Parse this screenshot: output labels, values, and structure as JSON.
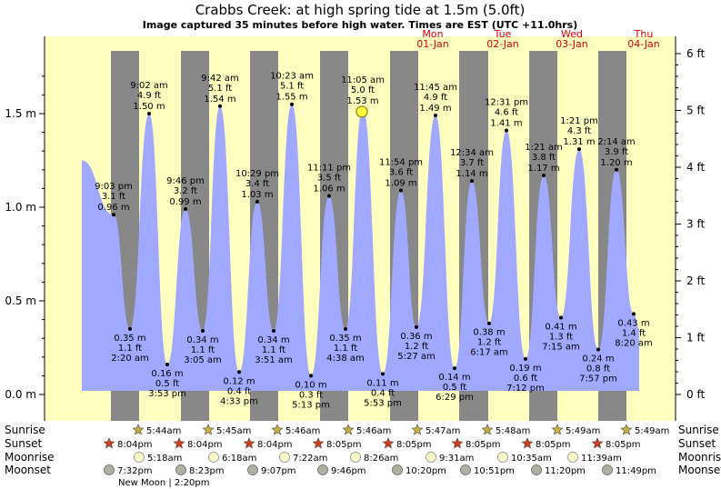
{
  "chart_data": {
    "type": "area",
    "title": "Crabbs Creek: at high  spring tide at 1.5m (5.0ft)",
    "subtitle": "Image captured 35 minutes before high water. Times are EST (UTC +11.0hrs)",
    "left_axis": {
      "unit": "m",
      "ticks": [
        "0.0 m",
        "0.5 m",
        "1.0 m",
        "1.5 m"
      ],
      "values": [
        0,
        0.5,
        1.0,
        1.5
      ],
      "range": [
        -0.06,
        1.85
      ]
    },
    "right_axis": {
      "unit": "ft",
      "ticks": [
        "0 ft",
        "1 ft",
        "2 ft",
        "3 ft",
        "4 ft",
        "5 ft",
        "6 ft"
      ],
      "values": [
        0,
        1,
        2,
        3,
        4,
        5,
        6
      ]
    },
    "day_labels": [
      {
        "day": "Mon",
        "date": "01-Jan"
      },
      {
        "day": "Tue",
        "date": "02-Jan"
      },
      {
        "day": "Wed",
        "date": "03-Jan"
      },
      {
        "day": "Thu",
        "date": "04-Jan"
      }
    ],
    "start_level": 1.25,
    "end_level": 0.35,
    "tides": [
      {
        "type": "high",
        "time": "9:03 pm",
        "ft": "3.1 ft",
        "m": "0.96 m",
        "value": 0.96
      },
      {
        "type": "low",
        "time": "2:20 am",
        "ft": "1.1 ft",
        "m": "0.35 m",
        "value": 0.35
      },
      {
        "type": "high",
        "time": "9:02 am",
        "ft": "4.9 ft",
        "m": "1.50 m",
        "value": 1.5
      },
      {
        "type": "low",
        "time": "3:53 pm",
        "ft": "0.5 ft",
        "m": "0.16 m",
        "value": 0.16
      },
      {
        "type": "high",
        "time": "9:46 pm",
        "ft": "3.2 ft",
        "m": "0.99 m",
        "value": 0.99
      },
      {
        "type": "low",
        "time": "3:05 am",
        "ft": "1.1 ft",
        "m": "0.34 m",
        "value": 0.34
      },
      {
        "type": "high",
        "time": "9:42 am",
        "ft": "5.1 ft",
        "m": "1.54 m",
        "value": 1.54
      },
      {
        "type": "low",
        "time": "4:33 pm",
        "ft": "0.4 ft",
        "m": "0.12 m",
        "value": 0.12
      },
      {
        "type": "high",
        "time": "10:29 pm",
        "ft": "3.4 ft",
        "m": "1.03 m",
        "value": 1.03
      },
      {
        "type": "low",
        "time": "3:51 am",
        "ft": "1.1 ft",
        "m": "0.34 m",
        "value": 0.34
      },
      {
        "type": "high",
        "time": "10:23 am",
        "ft": "5.1 ft",
        "m": "1.55 m",
        "value": 1.55
      },
      {
        "type": "low",
        "time": "5:13 pm",
        "ft": "0.3 ft",
        "m": "0.10 m",
        "value": 0.1
      },
      {
        "type": "high",
        "time": "11:11 pm",
        "ft": "3.5 ft",
        "m": "1.06 m",
        "value": 1.06
      },
      {
        "type": "low",
        "time": "4:38 am",
        "ft": "1.1 ft",
        "m": "0.35 m",
        "value": 0.35
      },
      {
        "type": "high",
        "time": "11:05 am",
        "ft": "5.0 ft",
        "m": "1.53 m",
        "value": 1.53
      },
      {
        "type": "low",
        "time": "5:53 pm",
        "ft": "0.4 ft",
        "m": "0.11 m",
        "value": 0.11
      },
      {
        "type": "high",
        "time": "11:54 pm",
        "ft": "3.6 ft",
        "m": "1.09 m",
        "value": 1.09
      },
      {
        "type": "low",
        "time": "5:27 am",
        "ft": "1.2 ft",
        "m": "0.36 m",
        "value": 0.36
      },
      {
        "type": "high",
        "time": "11:45 am",
        "ft": "4.9 ft",
        "m": "1.49 m",
        "value": 1.49
      },
      {
        "type": "low",
        "time": "6:29 pm",
        "ft": "0.5 ft",
        "m": "0.14 m",
        "value": 0.14
      },
      {
        "type": "high",
        "time": "12:34 am",
        "ft": "3.7 ft",
        "m": "1.14 m",
        "value": 1.14
      },
      {
        "type": "low",
        "time": "6:17 am",
        "ft": "1.2 ft",
        "m": "0.38 m",
        "value": 0.38
      },
      {
        "type": "high",
        "time": "12:31 pm",
        "ft": "4.6 ft",
        "m": "1.41 m",
        "value": 1.41
      },
      {
        "type": "low",
        "time": "7:12 pm",
        "ft": "0.6 ft",
        "m": "0.19 m",
        "value": 0.19
      },
      {
        "type": "high",
        "time": "1:21 am",
        "ft": "3.8 ft",
        "m": "1.17 m",
        "value": 1.17
      },
      {
        "type": "low",
        "time": "7:15 am",
        "ft": "1.3 ft",
        "m": "0.41 m",
        "value": 0.41
      },
      {
        "type": "high",
        "time": "1:21 pm",
        "ft": "4.3 ft",
        "m": "1.31 m",
        "value": 1.31
      },
      {
        "type": "low",
        "time": "7:57 pm",
        "ft": "0.8 ft",
        "m": "0.24 m",
        "value": 0.24
      },
      {
        "type": "high",
        "time": "2:14 am",
        "ft": "3.9 ft",
        "m": "1.20 m",
        "value": 1.2
      },
      {
        "type": "low",
        "time": "8:20 am",
        "ft": "1.4 ft",
        "m": "0.43 m",
        "value": 0.43
      }
    ],
    "current_marker": {
      "tide_index": 14
    },
    "astronomy": {
      "labels": {
        "sunrise": "Sunrise",
        "sunset": "Sunset",
        "moonrise": "Moonrise",
        "moonset": "Moonset"
      },
      "sunrise": [
        "5:44am",
        "5:45am",
        "5:46am",
        "5:46am",
        "5:47am",
        "5:48am",
        "5:49am",
        "5:49am"
      ],
      "sunset": [
        "8:04pm",
        "8:04pm",
        "8:04pm",
        "8:05pm",
        "8:05pm",
        "8:05pm",
        "8:05pm",
        "8:05pm"
      ],
      "moonrise": [
        "5:18am",
        "6:18am",
        "7:22am",
        "8:26am",
        "9:31am",
        "10:35am",
        "11:39am"
      ],
      "moonset": [
        "7:32pm",
        "8:23pm",
        "9:07pm",
        "9:46pm",
        "10:20pm",
        "10:51pm",
        "11:20pm",
        "11:49pm"
      ],
      "new_moon": "New Moon | 2:20pm"
    },
    "colors": {
      "day_bg": "#ffffc0",
      "night_bg": "#888888",
      "water": "#a0a8ff",
      "marker": "#ffff40",
      "day_text": "#e00000",
      "sun": "#c8b040",
      "sunset": "#d04020",
      "moon": "#ffffcc",
      "moonset": "#b0b0a0"
    }
  }
}
